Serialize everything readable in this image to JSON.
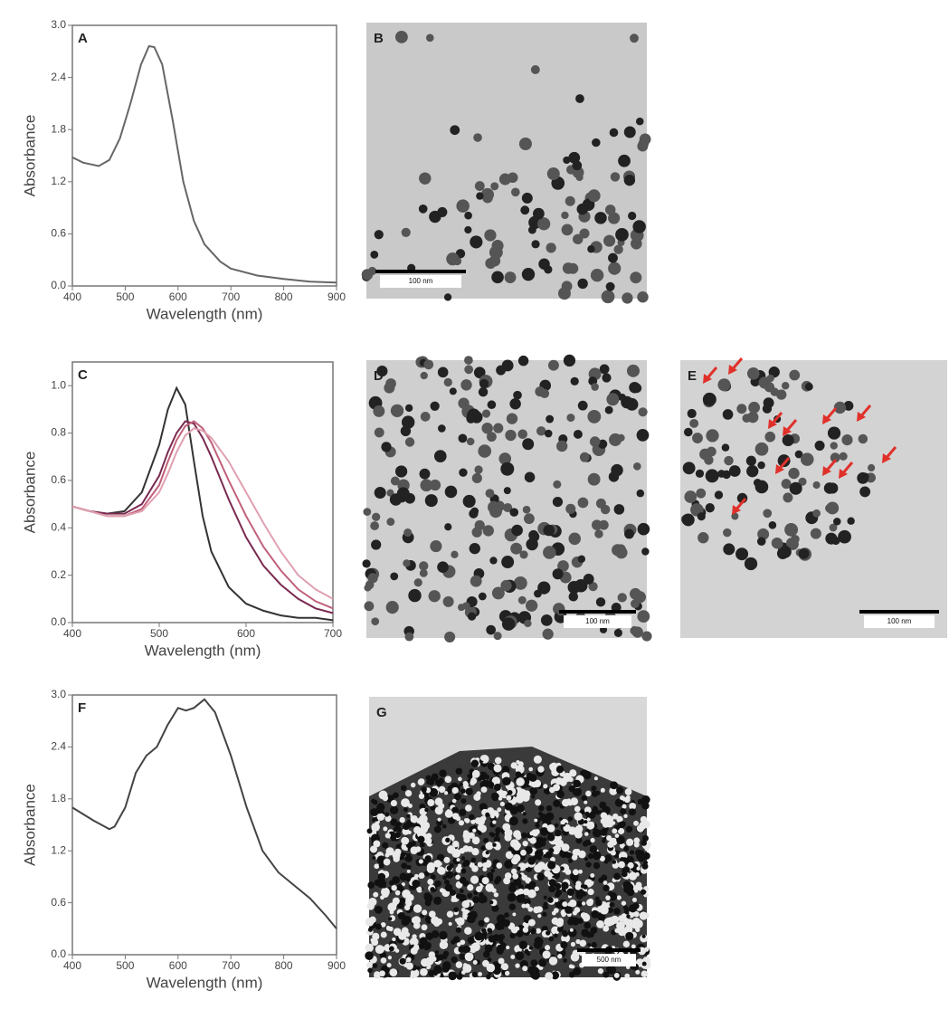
{
  "chart_data": [
    {
      "type": "line",
      "panel": "A",
      "ylabel": "Absorbance",
      "xlabel": "Wavelength (nm)",
      "x": [
        400,
        420,
        450,
        470,
        490,
        510,
        530,
        545,
        555,
        570,
        590,
        610,
        630,
        650,
        680,
        700,
        750,
        800,
        850,
        900
      ],
      "values": [
        1.48,
        1.42,
        1.38,
        1.45,
        1.7,
        2.1,
        2.55,
        2.76,
        2.75,
        2.55,
        1.9,
        1.2,
        0.75,
        0.48,
        0.28,
        0.2,
        0.12,
        0.08,
        0.05,
        0.04
      ],
      "color": "#666666",
      "xlim": [
        400,
        900
      ],
      "xticks": [
        400,
        500,
        600,
        700,
        800,
        900
      ],
      "ylim": [
        0,
        3.0
      ],
      "yticks": [
        {
          "value": 0,
          "label": "0.0"
        },
        {
          "value": 0.6,
          "label": "0.6"
        },
        {
          "value": 1.2,
          "label": "1.2"
        },
        {
          "value": 1.8,
          "label": "1.8"
        },
        {
          "value": 2.4,
          "label": "2.4"
        },
        {
          "value": 3.0,
          "label": "3.0"
        }
      ]
    },
    {
      "type": "line",
      "panel": "C",
      "ylabel": "Absorbance",
      "xlabel": "Wavelength (nm)",
      "x": [
        400,
        420,
        440,
        460,
        480,
        500,
        510,
        520,
        530,
        540,
        550,
        560,
        580,
        600,
        620,
        640,
        660,
        680,
        700
      ],
      "series": [
        {
          "color": "#333333",
          "values": [
            0.49,
            0.47,
            0.46,
            0.47,
            0.55,
            0.75,
            0.9,
            0.99,
            0.92,
            0.68,
            0.45,
            0.3,
            0.15,
            0.08,
            0.05,
            0.03,
            0.02,
            0.02,
            0.01
          ]
        },
        {
          "color": "#7a2a50",
          "values": [
            0.49,
            0.47,
            0.46,
            0.46,
            0.5,
            0.62,
            0.72,
            0.8,
            0.85,
            0.84,
            0.78,
            0.7,
            0.52,
            0.36,
            0.24,
            0.16,
            0.1,
            0.06,
            0.04
          ]
        },
        {
          "color": "#c0607a",
          "values": [
            0.49,
            0.47,
            0.45,
            0.45,
            0.48,
            0.58,
            0.68,
            0.77,
            0.83,
            0.85,
            0.82,
            0.76,
            0.6,
            0.45,
            0.32,
            0.22,
            0.14,
            0.09,
            0.06
          ]
        },
        {
          "color": "#e0a0b0",
          "values": [
            0.49,
            0.47,
            0.45,
            0.45,
            0.47,
            0.55,
            0.63,
            0.72,
            0.79,
            0.82,
            0.81,
            0.78,
            0.68,
            0.55,
            0.42,
            0.3,
            0.2,
            0.14,
            0.1
          ]
        }
      ],
      "xlim": [
        400,
        700
      ],
      "xticks": [
        400,
        500,
        600,
        700
      ],
      "ylim": [
        0,
        1.1
      ],
      "yticks": [
        {
          "value": 0,
          "label": "0.0"
        },
        {
          "value": 0.2,
          "label": "0.2"
        },
        {
          "value": 0.4,
          "label": "0.4"
        },
        {
          "value": 0.6,
          "label": "0.6"
        },
        {
          "value": 0.8,
          "label": "0.8"
        },
        {
          "value": 1.0,
          "label": "1.0"
        }
      ]
    },
    {
      "type": "line",
      "panel": "F",
      "ylabel": "Absorbance",
      "xlabel": "Wavelength (nm)",
      "x": [
        400,
        440,
        470,
        480,
        500,
        520,
        540,
        560,
        580,
        600,
        615,
        630,
        650,
        670,
        700,
        730,
        760,
        790,
        820,
        850,
        880,
        900
      ],
      "values": [
        1.7,
        1.55,
        1.45,
        1.48,
        1.7,
        2.1,
        2.3,
        2.4,
        2.65,
        2.85,
        2.82,
        2.85,
        2.95,
        2.8,
        2.3,
        1.7,
        1.2,
        0.95,
        0.8,
        0.65,
        0.45,
        0.3
      ],
      "color": "#444444",
      "xlim": [
        400,
        900
      ],
      "xticks": [
        400,
        500,
        600,
        700,
        800,
        900
      ],
      "ylim": [
        0,
        3.0
      ],
      "yticks": [
        {
          "value": 0,
          "label": "0.0"
        },
        {
          "value": 0.6,
          "label": "0.6"
        },
        {
          "value": 1.2,
          "label": "1.2"
        },
        {
          "value": 1.8,
          "label": "1.8"
        },
        {
          "value": 2.4,
          "label": "2.4"
        },
        {
          "value": 3.0,
          "label": "3.0"
        }
      ]
    }
  ],
  "images": [
    {
      "panel": "B",
      "scale_bar": "100 nm"
    },
    {
      "panel": "D",
      "scale_bar": "100 nm"
    },
    {
      "panel": "E",
      "scale_bar": "100 nm"
    },
    {
      "panel": "G",
      "scale_bar": "500 nm"
    }
  ]
}
